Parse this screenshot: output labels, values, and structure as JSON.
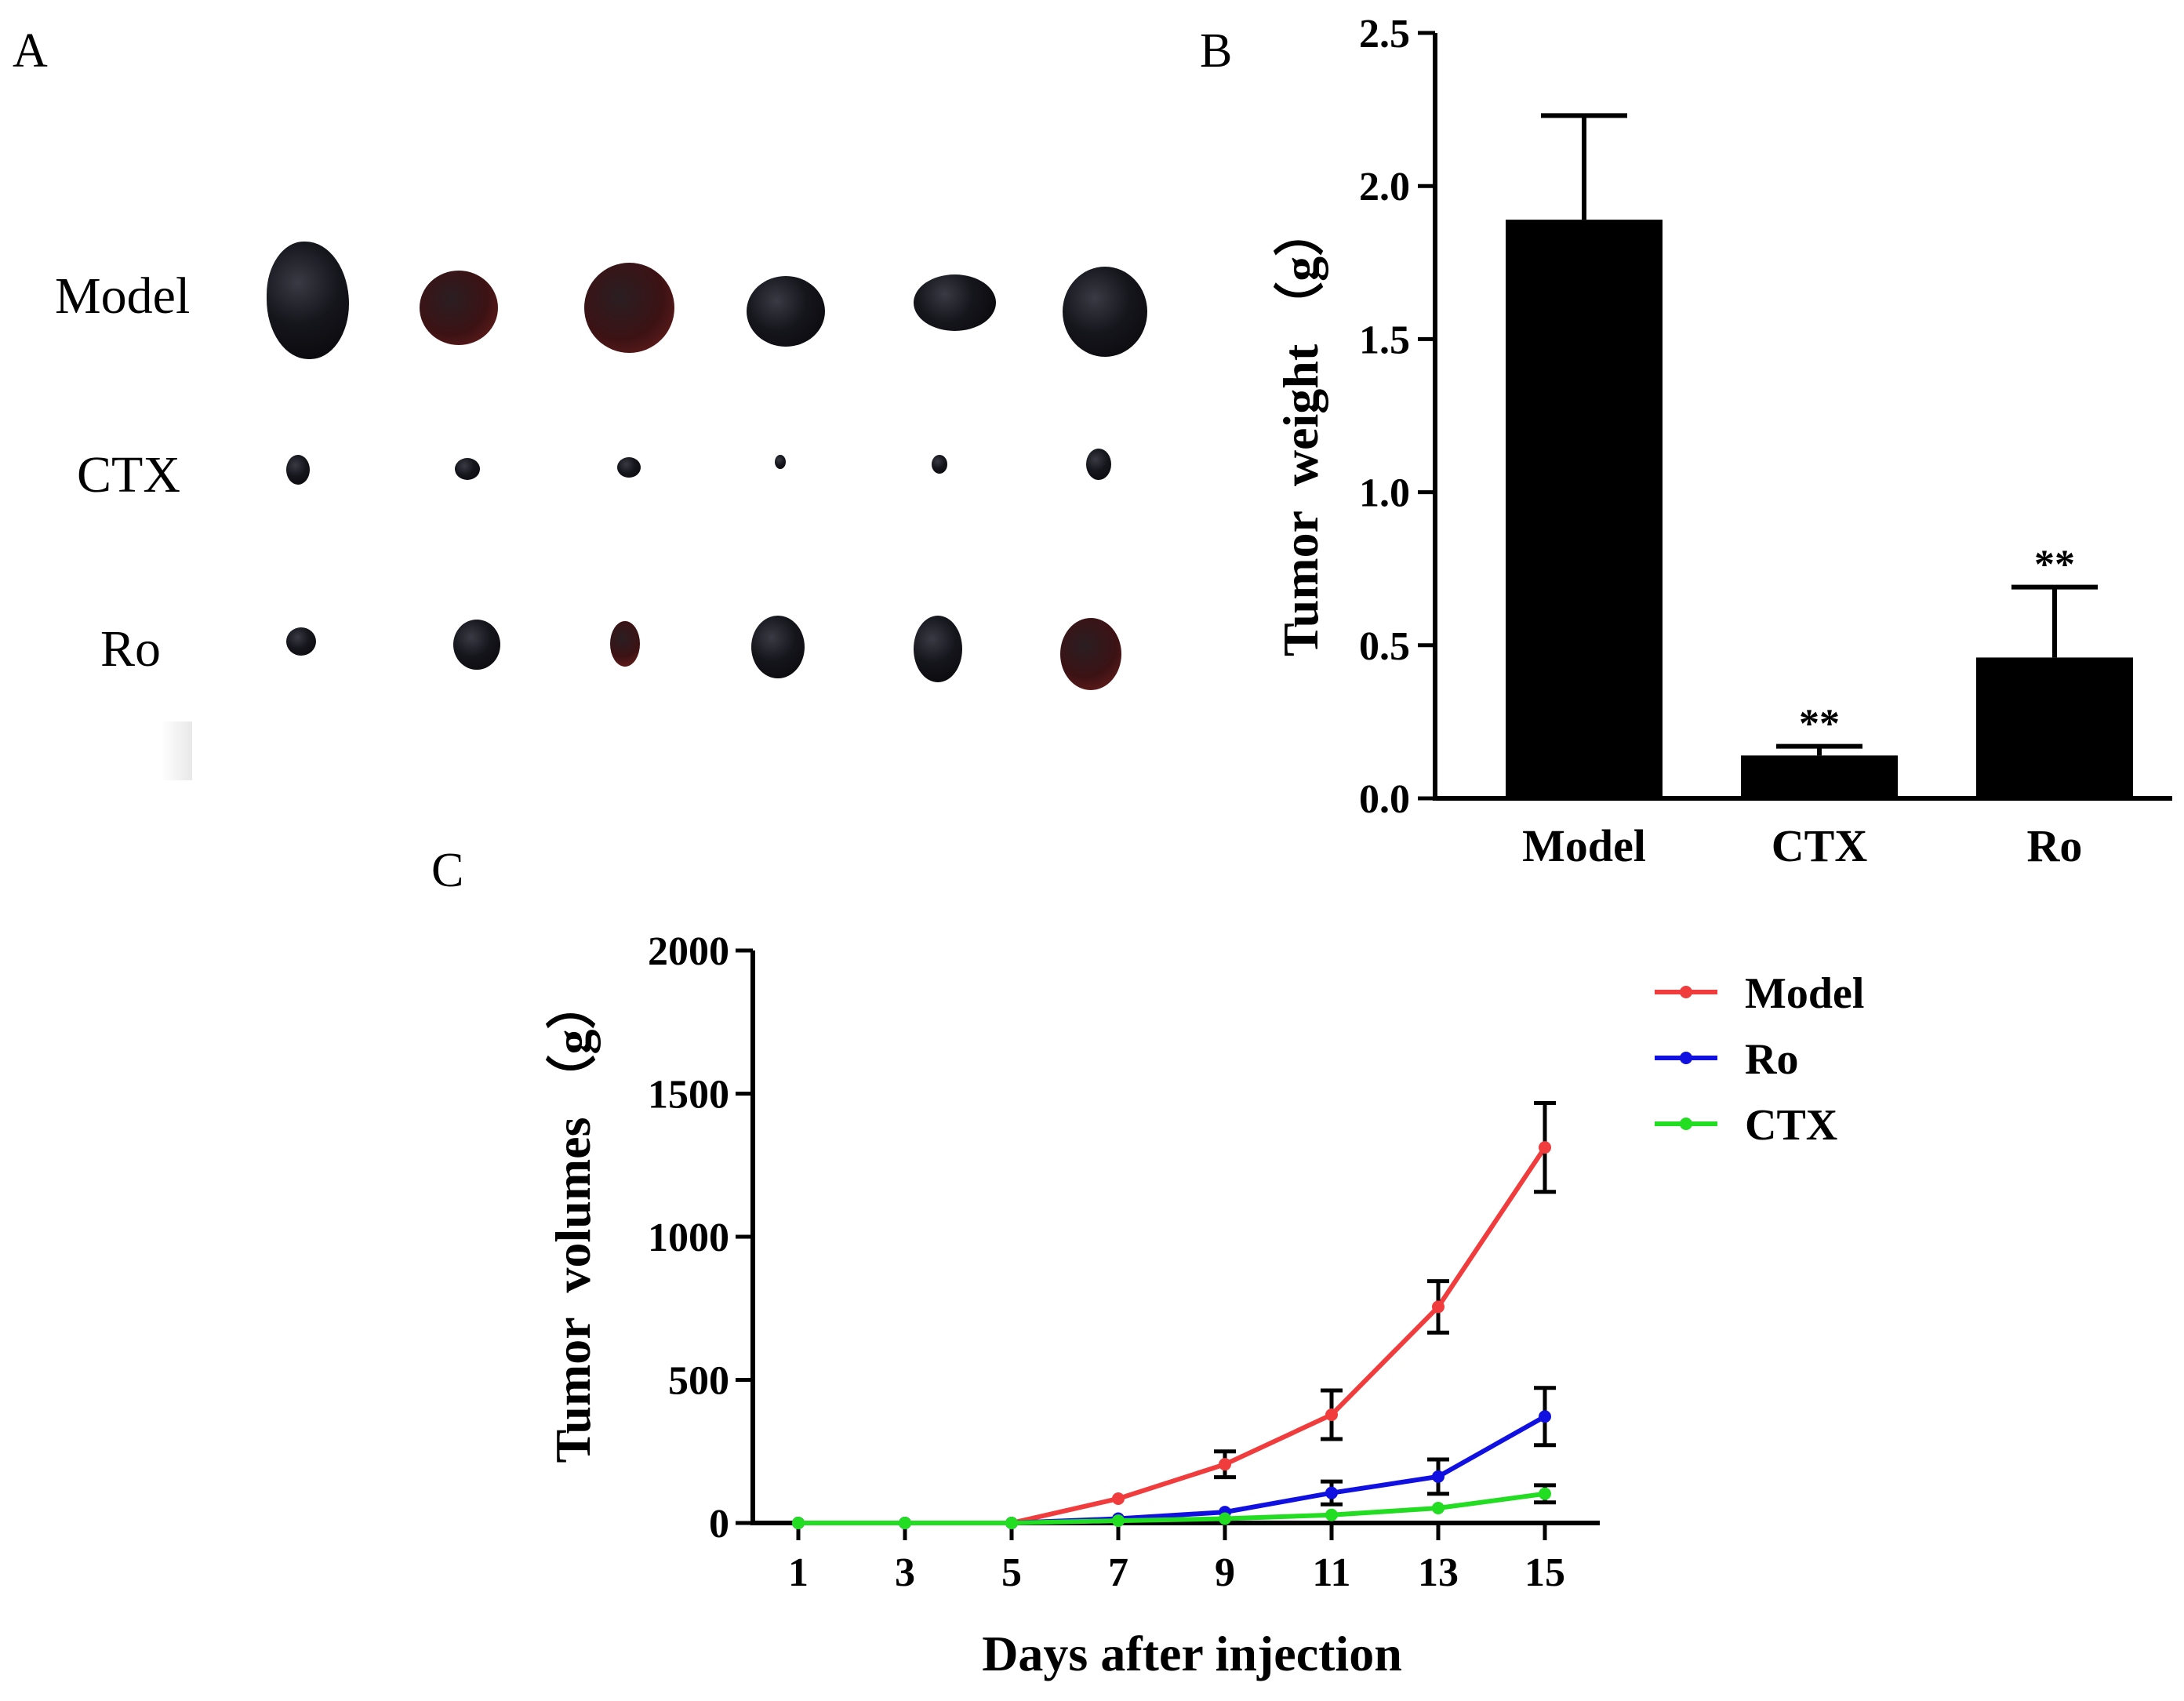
{
  "panels": {
    "a": "A",
    "b": "B",
    "c": "C"
  },
  "photo": {
    "rows": [
      {
        "label": "Model"
      },
      {
        "label": "CTX"
      },
      {
        "label": "Ro"
      }
    ]
  },
  "chart_data": [
    {
      "type": "bar",
      "title": "",
      "xlabel": "",
      "ylabel": "Tumor  weight （g）",
      "categories": [
        "Model",
        "CTX",
        "Ro"
      ],
      "values": [
        1.89,
        0.14,
        0.46
      ],
      "errors": [
        0.34,
        0.03,
        0.23
      ],
      "significance": [
        "",
        "**",
        "**"
      ],
      "ylim": [
        0,
        2.5
      ],
      "yticks": [
        0.0,
        0.5,
        1.0,
        1.5,
        2.0,
        2.5
      ],
      "ytick_labels": [
        "0.0",
        "0.5",
        "1.0",
        "1.5",
        "2.0",
        "2.5"
      ],
      "color": "#000000",
      "grid": false
    },
    {
      "type": "line",
      "title": "",
      "xlabel": "Days after injection",
      "ylabel": "Tumor  volumes （g）",
      "x": [
        1,
        3,
        5,
        7,
        9,
        11,
        13,
        15
      ],
      "xticks": [
        "1",
        "3",
        "5",
        "7",
        "9",
        "11",
        "13",
        "15"
      ],
      "ylim": [
        0,
        2000
      ],
      "yticks": [
        "0",
        "500",
        "1000",
        "1500",
        "2000"
      ],
      "legend_position": "top-right",
      "grid": false,
      "series": [
        {
          "name": "Model",
          "color": "#f03c3c",
          "values": [
            0,
            0,
            0,
            85,
            205,
            378,
            755,
            1312
          ],
          "errors": [
            0,
            0,
            0,
            0,
            45,
            85,
            90,
            155
          ]
        },
        {
          "name": "Ro",
          "color": "#1010e0",
          "values": [
            0,
            0,
            0,
            15,
            38,
            105,
            162,
            372
          ],
          "errors": [
            0,
            0,
            0,
            0,
            0,
            40,
            60,
            100
          ]
        },
        {
          "name": "CTX",
          "color": "#22dd22",
          "values": [
            0,
            0,
            0,
            8,
            15,
            28,
            52,
            102
          ],
          "errors": [
            0,
            0,
            0,
            0,
            0,
            0,
            0,
            30
          ]
        }
      ]
    }
  ]
}
